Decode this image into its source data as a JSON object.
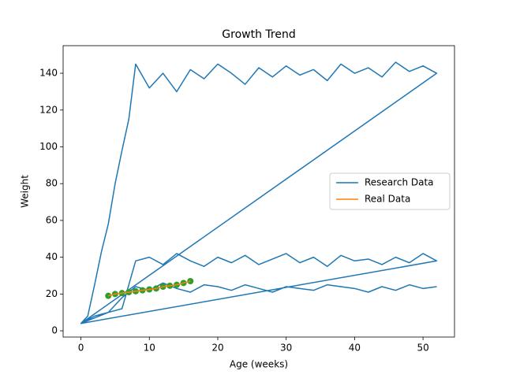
{
  "chart_data": {
    "type": "line",
    "title": "Growth Trend",
    "xlabel": "Age (weeks)",
    "ylabel": "Weight",
    "xlim": [
      -2.6,
      54.6
    ],
    "ylim": [
      -3.4,
      155
    ],
    "xticks": [
      0,
      10,
      20,
      30,
      40,
      50
    ],
    "yticks": [
      0,
      20,
      40,
      60,
      80,
      100,
      120,
      140
    ],
    "legend": "center right",
    "series": [
      {
        "name": "Research Data",
        "color": "#1f77b4",
        "x": [
          0,
          1,
          2,
          3,
          4,
          5,
          6,
          7,
          8,
          10,
          12,
          14,
          16,
          18,
          20,
          22,
          24,
          26,
          28,
          30,
          32,
          34,
          36,
          38,
          40,
          42,
          44,
          46,
          48,
          50,
          52,
          0,
          2,
          4,
          6,
          8,
          10,
          12,
          14,
          16,
          18,
          20,
          22,
          24,
          26,
          28,
          30,
          32,
          34,
          36,
          38,
          40,
          42,
          44,
          46,
          48,
          50,
          52,
          0,
          2,
          4,
          6,
          8,
          10,
          12,
          14,
          16,
          18,
          20,
          22,
          24,
          26,
          28,
          30,
          32,
          34,
          36,
          38,
          40,
          42,
          44,
          46,
          48,
          50,
          52
        ],
        "y": [
          4,
          8,
          25,
          43,
          58,
          80,
          98,
          115,
          145,
          132,
          140,
          130,
          142,
          137,
          145,
          140,
          134,
          143,
          138,
          144,
          139,
          142,
          136,
          145,
          140,
          143,
          138,
          146,
          141,
          144,
          140,
          4,
          8,
          10,
          12,
          38,
          40,
          36,
          42,
          38,
          35,
          40,
          37,
          41,
          36,
          39,
          42,
          37,
          40,
          35,
          41,
          38,
          39,
          36,
          40,
          37,
          42,
          38,
          4,
          7,
          10,
          18,
          24,
          22,
          26,
          23,
          21,
          25,
          24,
          22,
          25,
          23,
          21,
          24,
          23,
          22,
          25,
          24,
          23,
          21,
          24,
          22,
          25,
          23,
          24
        ]
      },
      {
        "name": "Real Data",
        "color": "#ff7f0e",
        "marker_color": "#2ca02c",
        "x": [
          4,
          5,
          6,
          7,
          8,
          9,
          10,
          11,
          12,
          13,
          14,
          15,
          16
        ],
        "y": [
          19,
          20,
          20.5,
          21,
          21.5,
          22,
          22.5,
          23,
          24,
          24.5,
          25,
          26,
          27
        ]
      }
    ]
  }
}
